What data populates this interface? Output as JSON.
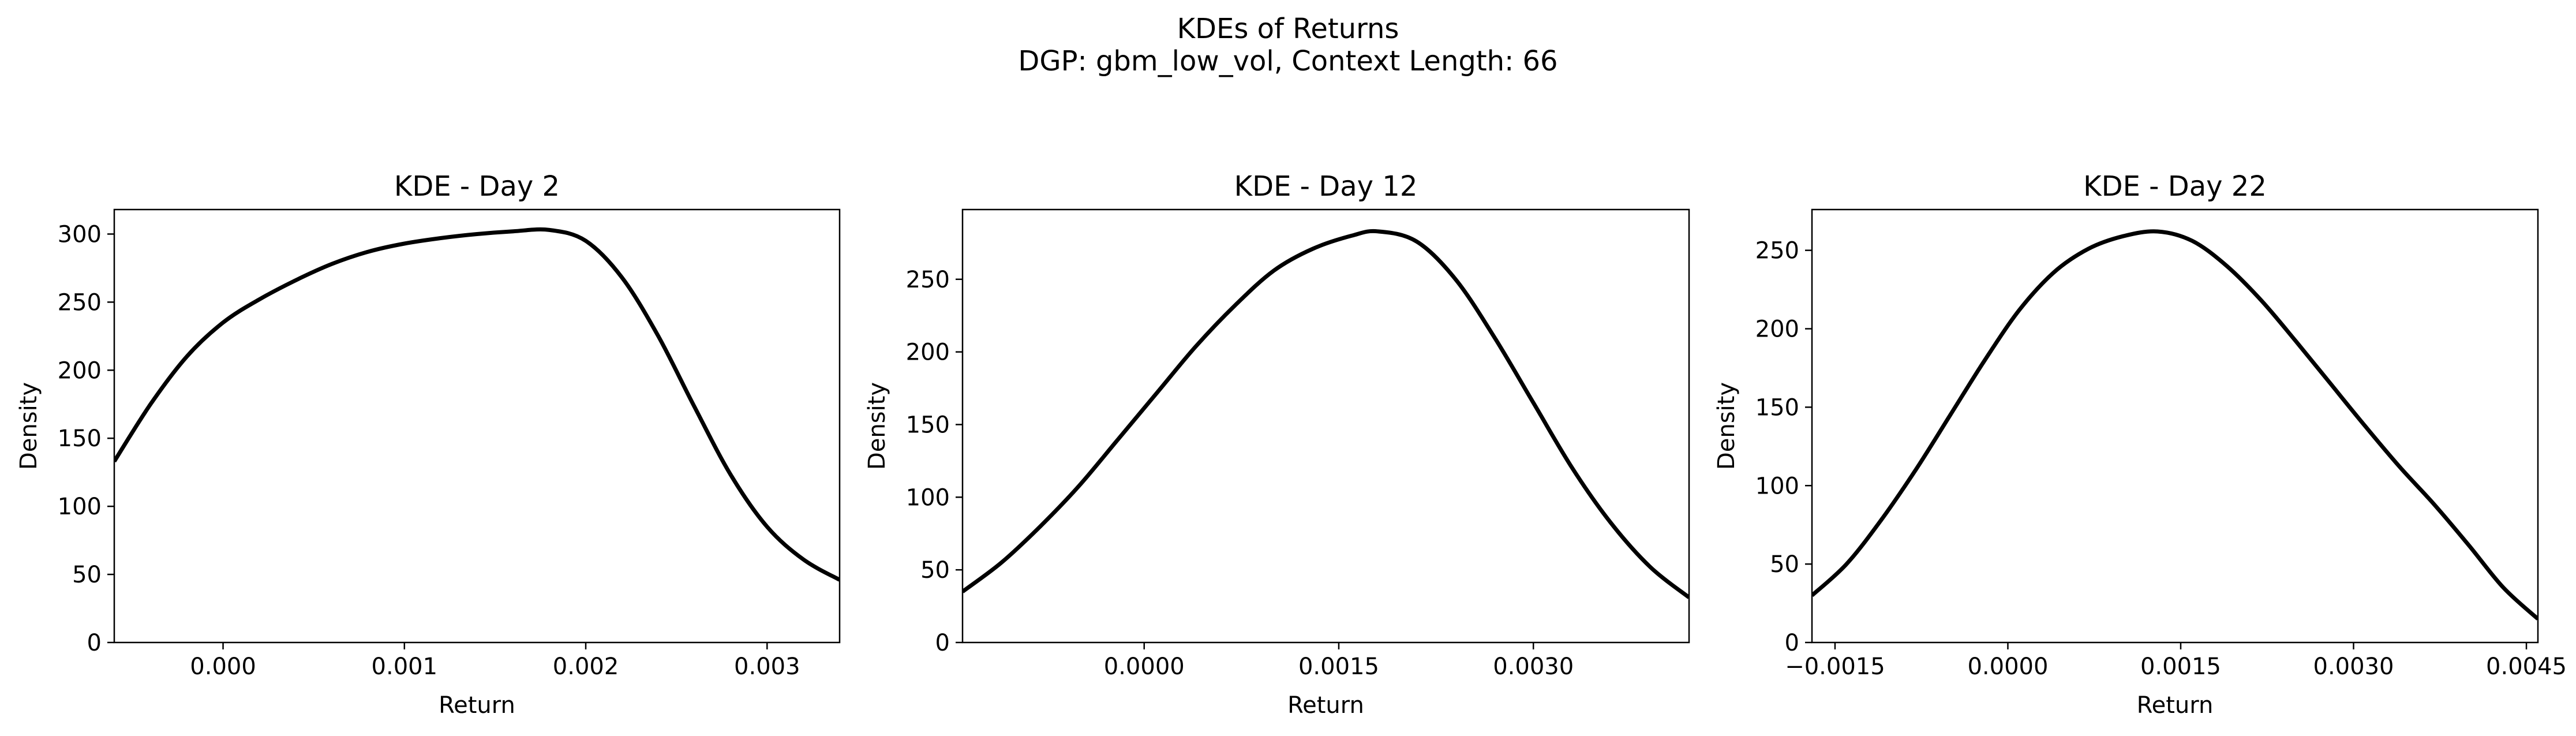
{
  "figure": {
    "title": "KDEs of Returns",
    "subtitle": "DGP: gbm_low_vol, Context Length: 66"
  },
  "chart_data": [
    {
      "type": "line",
      "title": "KDE - Day 2",
      "xlabel": "Return",
      "ylabel": "Density",
      "xlim": [
        -0.0006,
        0.0034
      ],
      "ylim": [
        0,
        318
      ],
      "xticks": [
        0.0,
        0.001,
        0.002,
        0.003
      ],
      "xtick_labels": [
        "0.000",
        "0.001",
        "0.002",
        "0.003"
      ],
      "yticks": [
        0,
        50,
        100,
        150,
        200,
        250,
        300
      ],
      "ytick_labels": [
        "0",
        "50",
        "100",
        "150",
        "200",
        "250",
        "300"
      ],
      "grid": false,
      "series": [
        {
          "color": "#000000",
          "x": [
            -0.0006,
            -0.0004,
            -0.0002,
            0.0,
            0.0002,
            0.0004,
            0.0006,
            0.0008,
            0.001,
            0.0012,
            0.0014,
            0.0016,
            0.0018,
            0.002,
            0.0022,
            0.0024,
            0.0026,
            0.0028,
            0.003,
            0.0032,
            0.0034
          ],
          "y": [
            133,
            175,
            210,
            235,
            252,
            266,
            278,
            287,
            293,
            297,
            300,
            302,
            303,
            295,
            268,
            225,
            173,
            123,
            85,
            61,
            46
          ]
        }
      ]
    },
    {
      "type": "line",
      "title": "KDE - Day 12",
      "xlabel": "Return",
      "ylabel": "Density",
      "xlim": [
        -0.0014,
        0.0042
      ],
      "ylim": [
        0,
        298
      ],
      "xticks": [
        0.0,
        0.0015,
        0.003
      ],
      "xtick_labels": [
        "0.0000",
        "0.0015",
        "0.0030"
      ],
      "yticks": [
        0,
        50,
        100,
        150,
        200,
        250
      ],
      "ytick_labels": [
        "0",
        "50",
        "100",
        "150",
        "200",
        "250"
      ],
      "grid": false,
      "series": [
        {
          "color": "#000000",
          "x": [
            -0.0014,
            -0.0011,
            -0.0008,
            -0.0005,
            -0.0002,
            0.0001,
            0.0004,
            0.0007,
            0.001,
            0.0013,
            0.0016,
            0.0018,
            0.0021,
            0.0024,
            0.0027,
            0.003,
            0.0033,
            0.0036,
            0.0039,
            0.0042
          ],
          "y": [
            35,
            55,
            80,
            108,
            140,
            172,
            204,
            232,
            256,
            271,
            280,
            283,
            276,
            250,
            210,
            165,
            120,
            82,
            52,
            31
          ]
        }
      ]
    },
    {
      "type": "line",
      "title": "KDE - Day 22",
      "xlabel": "Return",
      "ylabel": "Density",
      "xlim": [
        -0.0017,
        0.0046
      ],
      "ylim": [
        0,
        276
      ],
      "xticks": [
        -0.0015,
        0.0,
        0.0015,
        0.003,
        0.0045
      ],
      "xtick_labels": [
        "−0.0015",
        "0.0000",
        "0.0015",
        "0.0030",
        "0.0045"
      ],
      "yticks": [
        0,
        50,
        100,
        150,
        200,
        250
      ],
      "ytick_labels": [
        "0",
        "50",
        "100",
        "150",
        "200",
        "250"
      ],
      "grid": false,
      "series": [
        {
          "color": "#000000",
          "x": [
            -0.0017,
            -0.0014,
            -0.0011,
            -0.0008,
            -0.0005,
            -0.0002,
            0.0001,
            0.0004,
            0.0007,
            0.001,
            0.0013,
            0.0016,
            0.0019,
            0.0022,
            0.0025,
            0.0028,
            0.0031,
            0.0034,
            0.0037,
            0.004,
            0.0043,
            0.0046
          ],
          "y": [
            30,
            50,
            78,
            110,
            145,
            180,
            212,
            236,
            251,
            259,
            262,
            256,
            240,
            218,
            192,
            165,
            138,
            112,
            88,
            62,
            35,
            15
          ]
        }
      ]
    }
  ]
}
